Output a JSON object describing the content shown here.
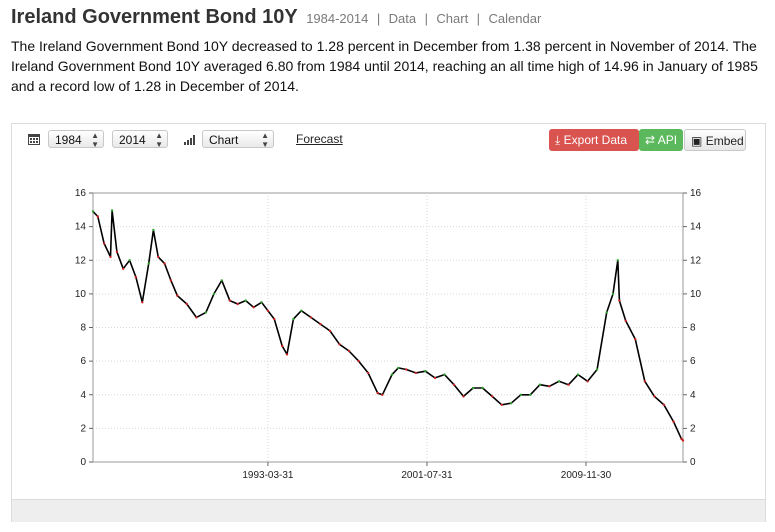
{
  "header": {
    "title": "Ireland Government Bond 10Y",
    "range": "1984-2014",
    "sep1": "|",
    "link_data": "Data",
    "sep2": "|",
    "link_chart": "Chart",
    "sep3": "|",
    "link_calendar": "Calendar"
  },
  "description": "The Ireland Government Bond 10Y decreased to 1.28 percent in December from 1.38 percent in November of 2014. The Ireland Government Bond 10Y averaged 6.80 from 1984 until 2014, reaching an all time high of 14.96 in January of 1985 and a record low of 1.28 in December of 2014.",
  "toolbar": {
    "calendar_icon": "calendar-icon",
    "start_year": "1984",
    "end_year": "2014",
    "bars_icon": "bar-chart-icon",
    "chart_type": "Chart",
    "forecast_label": "Forecast",
    "export_label": "Export Data",
    "api_label": "API",
    "embed_label": "Embed"
  },
  "colors": {
    "line": "#000000",
    "up": "#2e9e2e",
    "down": "#cc2222",
    "export": "#d9534f",
    "api": "#5cb85c"
  },
  "chart_data": {
    "type": "line",
    "title": "",
    "xlabel": "",
    "ylabel": "",
    "ylim": [
      0,
      16
    ],
    "yticks": [
      "0",
      "2",
      "4",
      "6",
      "8",
      "10",
      "12",
      "14",
      "16"
    ],
    "xtick_labels": [
      "1993-03-31",
      "2001-07-31",
      "2009-11-30"
    ],
    "grid": true,
    "series": [
      {
        "points": [
          [
            "1984-01",
            14.9
          ],
          [
            "1984-04",
            14.6
          ],
          [
            "1984-08",
            13.0
          ],
          [
            "1984-12",
            12.2
          ],
          [
            "1985-01",
            14.96
          ],
          [
            "1985-04",
            12.5
          ],
          [
            "1985-08",
            11.5
          ],
          [
            "1985-12",
            12.0
          ],
          [
            "1986-04",
            11.0
          ],
          [
            "1986-08",
            9.5
          ],
          [
            "1986-12",
            11.8
          ],
          [
            "1987-03",
            13.8
          ],
          [
            "1987-06",
            12.2
          ],
          [
            "1987-10",
            11.8
          ],
          [
            "1988-02",
            10.8
          ],
          [
            "1988-06",
            9.9
          ],
          [
            "1988-12",
            9.4
          ],
          [
            "1989-06",
            8.6
          ],
          [
            "1989-12",
            8.9
          ],
          [
            "1990-05",
            10.0
          ],
          [
            "1990-10",
            10.8
          ],
          [
            "1991-03",
            9.6
          ],
          [
            "1991-08",
            9.4
          ],
          [
            "1992-01",
            9.6
          ],
          [
            "1992-06",
            9.2
          ],
          [
            "1992-11",
            9.5
          ],
          [
            "1993-03",
            9.0
          ],
          [
            "1993-07",
            8.5
          ],
          [
            "1993-12",
            6.9
          ],
          [
            "1994-03",
            6.4
          ],
          [
            "1994-07",
            8.5
          ],
          [
            "1994-12",
            9.0
          ],
          [
            "1995-06",
            8.6
          ],
          [
            "1995-12",
            8.2
          ],
          [
            "1996-06",
            7.8
          ],
          [
            "1996-12",
            7.0
          ],
          [
            "1997-06",
            6.6
          ],
          [
            "1997-12",
            6.0
          ],
          [
            "1998-06",
            5.3
          ],
          [
            "1998-12",
            4.1
          ],
          [
            "1999-03",
            4.0
          ],
          [
            "1999-09",
            5.2
          ],
          [
            "2000-01",
            5.6
          ],
          [
            "2000-06",
            5.5
          ],
          [
            "2000-12",
            5.3
          ],
          [
            "2001-06",
            5.4
          ],
          [
            "2001-12",
            5.0
          ],
          [
            "2002-06",
            5.2
          ],
          [
            "2002-12",
            4.6
          ],
          [
            "2003-06",
            3.9
          ],
          [
            "2003-12",
            4.4
          ],
          [
            "2004-06",
            4.4
          ],
          [
            "2004-12",
            3.9
          ],
          [
            "2005-06",
            3.4
          ],
          [
            "2005-12",
            3.5
          ],
          [
            "2006-06",
            4.0
          ],
          [
            "2006-12",
            4.0
          ],
          [
            "2007-06",
            4.6
          ],
          [
            "2007-12",
            4.5
          ],
          [
            "2008-06",
            4.8
          ],
          [
            "2008-12",
            4.6
          ],
          [
            "2009-06",
            5.2
          ],
          [
            "2009-12",
            4.8
          ],
          [
            "2010-06",
            5.5
          ],
          [
            "2010-12",
            8.9
          ],
          [
            "2011-04",
            10.0
          ],
          [
            "2011-07",
            12.0
          ],
          [
            "2011-08",
            9.6
          ],
          [
            "2011-12",
            8.4
          ],
          [
            "2012-06",
            7.3
          ],
          [
            "2012-12",
            4.8
          ],
          [
            "2013-06",
            3.9
          ],
          [
            "2013-12",
            3.4
          ],
          [
            "2014-06",
            2.4
          ],
          [
            "2014-11",
            1.38
          ],
          [
            "2014-12",
            1.28
          ]
        ]
      }
    ]
  }
}
